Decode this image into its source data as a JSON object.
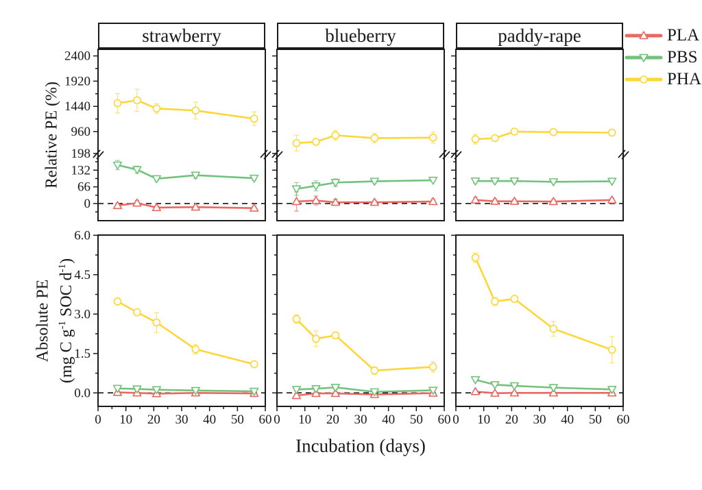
{
  "figure": {
    "x_axis_label": "Incubation (days)",
    "relative_y_label": "Relative PE (%)",
    "absolute_y_label_line1": "Absolute PE",
    "absolute_y_label_parts": [
      "(mg C g",
      "-1",
      " SOC d",
      "-1",
      ")"
    ]
  },
  "legend": {
    "position": "top-right",
    "items": [
      {
        "label": "PLA",
        "color": "#E86961",
        "marker": "triangle-up"
      },
      {
        "label": "PBS",
        "color": "#72C27C",
        "marker": "triangle-down"
      },
      {
        "label": "PHA",
        "color": "#FDD637",
        "marker": "circle"
      }
    ]
  },
  "axes": {
    "x": {
      "range": [
        0,
        60
      ],
      "major_ticks": [
        "0",
        "10",
        "20",
        "30",
        "40",
        "50",
        "60"
      ],
      "minor_step": 5,
      "grid": "off"
    },
    "relative": {
      "label": "Relative PE (%)",
      "lower_ticks": [
        "0",
        "66",
        "132",
        "198"
      ],
      "upper_ticks": [
        "960",
        "1440",
        "1920",
        "2400"
      ],
      "axis_break": [
        198,
        960
      ],
      "zero_line": "dashed"
    },
    "absolute": {
      "label": "Absolute PE (mg C g-1 SOC d-1)",
      "ticks": [
        "0.0",
        "1.5",
        "3.0",
        "4.5",
        "6.0"
      ],
      "range": [
        -0.8,
        6.0
      ],
      "zero_line": "dashed"
    }
  },
  "chart_data": [
    {
      "type": "line",
      "row": "relative",
      "column": "strawberry",
      "panel_title": "strawberry",
      "x": [
        7,
        14,
        21,
        35,
        56
      ],
      "series": [
        {
          "name": "PLA",
          "values": [
            -8,
            2,
            -16,
            -14,
            -18
          ],
          "errors": [
            8,
            10,
            6,
            6,
            8
          ]
        },
        {
          "name": "PBS",
          "values": [
            152,
            134,
            98,
            112,
            100
          ],
          "errors": [
            18,
            14,
            8,
            12,
            8
          ]
        },
        {
          "name": "PHA",
          "values": [
            1500,
            1555,
            1400,
            1360,
            1205
          ],
          "errors": [
            185,
            210,
            90,
            160,
            130
          ]
        }
      ]
    },
    {
      "type": "line",
      "row": "relative",
      "column": "blueberry",
      "panel_title": "blueberry",
      "x": [
        7,
        14,
        21,
        35,
        56
      ],
      "series": [
        {
          "name": "PLA",
          "values": [
            8,
            12,
            5,
            5,
            8
          ],
          "errors": [
            38,
            18,
            12,
            8,
            10
          ]
        },
        {
          "name": "PBS",
          "values": [
            58,
            70,
            83,
            88,
            92
          ],
          "errors": [
            25,
            20,
            15,
            8,
            6
          ]
        },
        {
          "name": "PHA",
          "values": [
            740,
            765,
            890,
            835,
            845
          ],
          "errors": [
            150,
            60,
            90,
            90,
            105
          ]
        }
      ]
    },
    {
      "type": "line",
      "row": "relative",
      "column": "paddy-rape",
      "panel_title": "paddy-rape",
      "x": [
        7,
        14,
        21,
        35,
        56
      ],
      "series": [
        {
          "name": "PLA",
          "values": [
            14,
            9,
            9,
            8,
            14
          ],
          "errors": [
            10,
            8,
            8,
            8,
            8
          ]
        },
        {
          "name": "PBS",
          "values": [
            89,
            89,
            89,
            86,
            88
          ],
          "errors": [
            8,
            8,
            8,
            6,
            6
          ]
        },
        {
          "name": "PHA",
          "values": [
            815,
            835,
            960,
            950,
            940
          ],
          "errors": [
            90,
            45,
            60,
            60,
            60
          ]
        }
      ]
    },
    {
      "type": "line",
      "row": "absolute",
      "column": "strawberry",
      "x": [
        7,
        14,
        21,
        35,
        56
      ],
      "series": [
        {
          "name": "PLA",
          "values": [
            0.02,
            0.0,
            -0.03,
            0.0,
            -0.02
          ],
          "errors": [
            0.04,
            0.04,
            0.04,
            0.04,
            0.03
          ]
        },
        {
          "name": "PBS",
          "values": [
            0.17,
            0.15,
            0.12,
            0.09,
            0.06
          ],
          "errors": [
            0.05,
            0.05,
            0.04,
            0.04,
            0.03
          ]
        },
        {
          "name": "PHA",
          "values": [
            3.48,
            3.07,
            2.68,
            1.66,
            1.09
          ],
          "errors": [
            0.12,
            0.1,
            0.38,
            0.18,
            0.08
          ]
        }
      ]
    },
    {
      "type": "line",
      "row": "absolute",
      "column": "blueberry",
      "x": [
        7,
        14,
        21,
        35,
        56
      ],
      "series": [
        {
          "name": "PLA",
          "values": [
            -0.1,
            -0.02,
            -0.02,
            -0.06,
            -0.01
          ],
          "errors": [
            0.08,
            0.05,
            0.05,
            0.05,
            0.04
          ]
        },
        {
          "name": "PBS",
          "values": [
            0.13,
            0.16,
            0.21,
            0.04,
            0.1
          ],
          "errors": [
            0.06,
            0.06,
            0.08,
            0.06,
            0.05
          ]
        },
        {
          "name": "PHA",
          "values": [
            2.81,
            2.06,
            2.19,
            0.85,
            0.99
          ],
          "errors": [
            0.16,
            0.3,
            0.12,
            0.14,
            0.2
          ]
        }
      ]
    },
    {
      "type": "line",
      "row": "absolute",
      "column": "paddy-rape",
      "x": [
        7,
        14,
        21,
        35,
        56
      ],
      "series": [
        {
          "name": "PLA",
          "values": [
            0.05,
            -0.01,
            0.0,
            0.0,
            0.0
          ],
          "errors": [
            0.05,
            0.04,
            0.04,
            0.04,
            0.03
          ]
        },
        {
          "name": "PBS",
          "values": [
            0.5,
            0.31,
            0.27,
            0.2,
            0.13
          ],
          "errors": [
            0.06,
            0.05,
            0.05,
            0.05,
            0.04
          ]
        },
        {
          "name": "PHA",
          "values": [
            5.15,
            3.48,
            3.58,
            2.44,
            1.64
          ],
          "errors": [
            0.18,
            0.15,
            0.12,
            0.28,
            0.5
          ]
        }
      ]
    }
  ]
}
